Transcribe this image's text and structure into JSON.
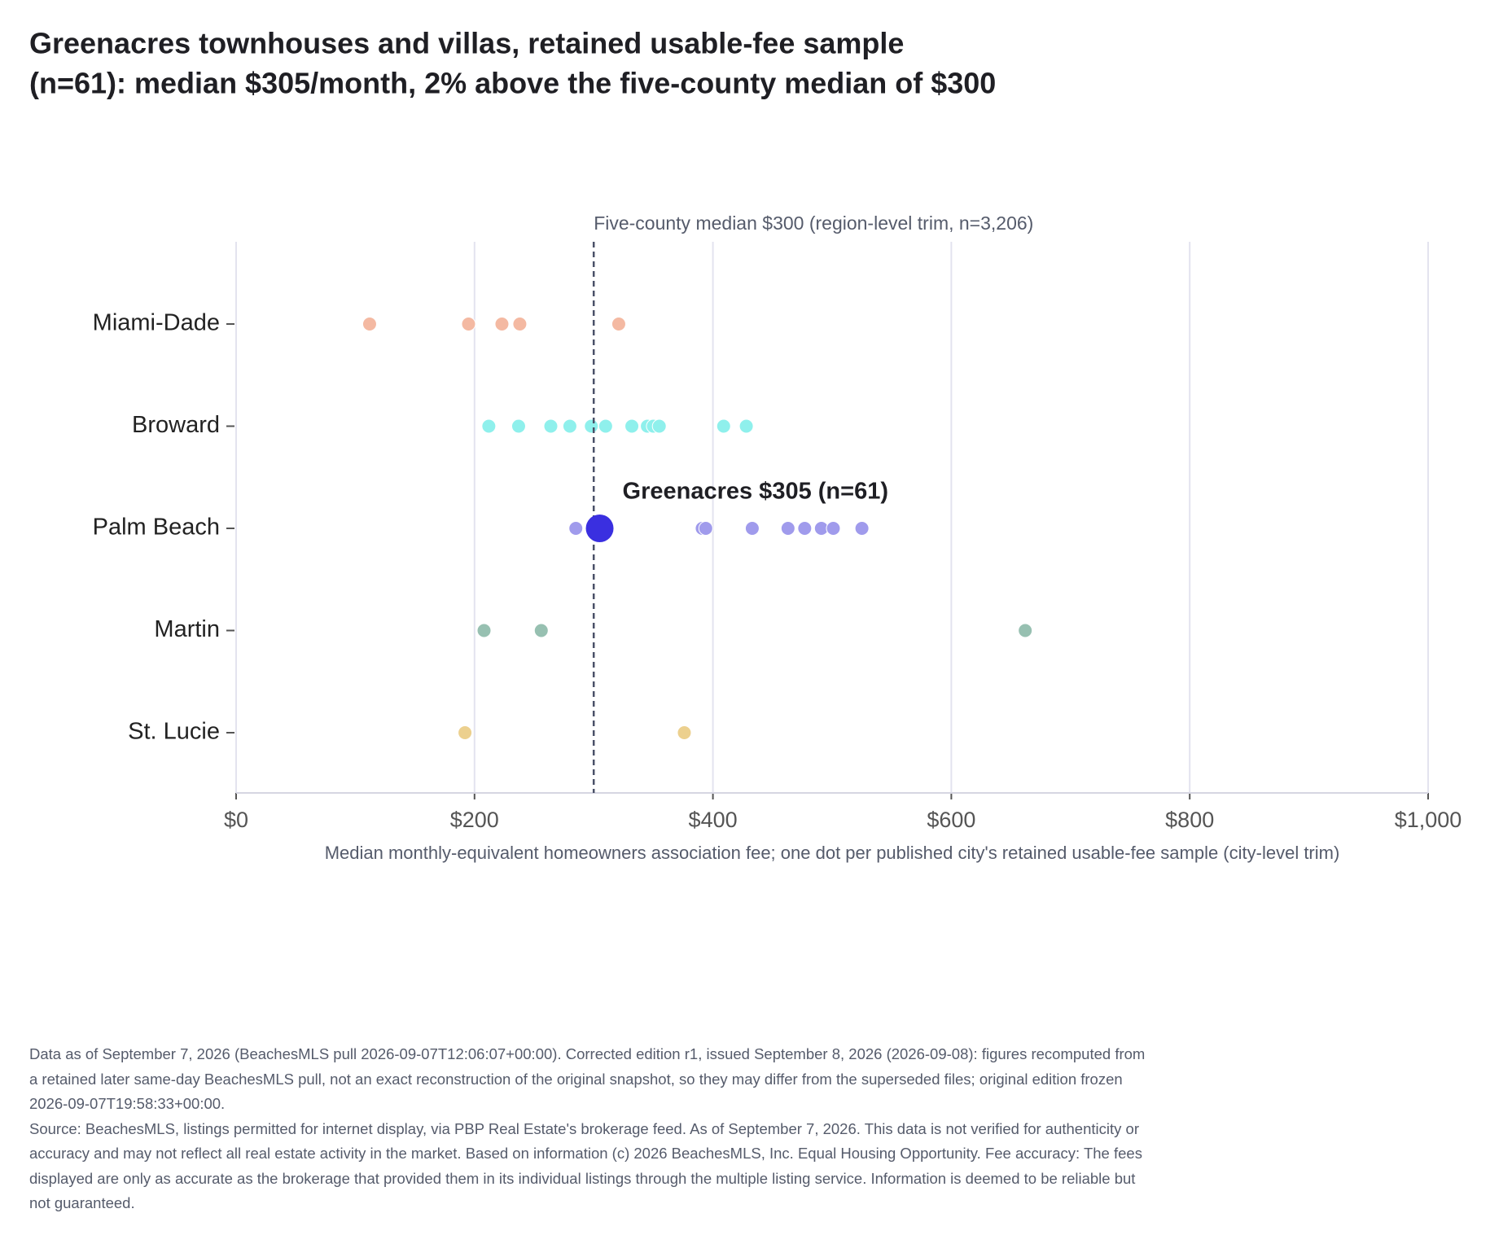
{
  "chart_data": {
    "type": "strip",
    "title": [
      "Greenacres townhouses and villas, retained usable-fee sample",
      "(n=61): median $305/month, 2% above the five-county median of $300"
    ],
    "x_label": "Median monthly-equivalent homeowners association fee; one dot per published city's retained usable-fee sample (city-level trim)",
    "xlim": [
      0,
      1000
    ],
    "xticks": [
      {
        "value": 0,
        "label": "$0"
      },
      {
        "value": 200,
        "label": "$200"
      },
      {
        "value": 400,
        "label": "$400"
      },
      {
        "value": 600,
        "label": "$600"
      },
      {
        "value": 800,
        "label": "$800"
      },
      {
        "value": 1000,
        "label": "$1,000"
      }
    ],
    "grid": true,
    "reference_line": {
      "value": 300,
      "label": "Five-county median $300 (region-level trim, n=3,206)",
      "color": "#4a5068"
    },
    "series": [
      {
        "name": "Miami-Dade",
        "color": "#f4b9a2",
        "values": [
          112,
          195,
          223,
          238,
          321
        ]
      },
      {
        "name": "Broward",
        "color": "#8ff0ec",
        "values": [
          212,
          237,
          264,
          280,
          298,
          310,
          332,
          345,
          350,
          355,
          409,
          428
        ]
      },
      {
        "name": "Palm Beach",
        "color": "#a09bec",
        "values": [
          285,
          391,
          394,
          433,
          463,
          477,
          491,
          501,
          525
        ],
        "highlight": {
          "value": 305,
          "label": "Greenacres $305 (n=61)",
          "color": "#3a2fe0"
        }
      },
      {
        "name": "Martin",
        "color": "#97c0b1",
        "values": [
          208,
          256,
          662
        ]
      },
      {
        "name": "St. Lucie",
        "color": "#ecd08e",
        "values": [
          192,
          376
        ]
      }
    ]
  },
  "footer": [
    "Data as of September 7, 2026 (BeachesMLS pull 2026-09-07T12:06:07+00:00). Corrected edition r1, issued September 8, 2026 (2026-09-08): figures recomputed from a retained later same-day BeachesMLS pull, not an exact reconstruction of the original snapshot, so they may differ from the superseded files; original edition frozen 2026-09-07T19:58:33+00:00.",
    "Source: BeachesMLS, listings permitted for internet display, via PBP Real Estate's brokerage feed. As of September 7, 2026. This data is not verified for authenticity or accuracy and may not reflect all real estate activity in the market. Based on information (c) 2026 BeachesMLS, Inc. Equal Housing Opportunity. Fee accuracy: The fees displayed are only as accurate as the brokerage that provided them in its individual listings through the multiple listing service. Information is deemed to be reliable but not guaranteed."
  ]
}
